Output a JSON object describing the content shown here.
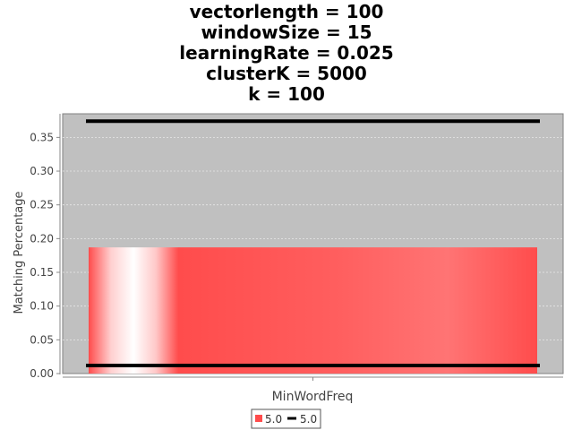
{
  "chart_data": {
    "type": "bar",
    "title_lines": [
      "vectorlength = 100",
      "windowSize = 15",
      "learningRate = 0.025",
      "clusterK = 5000",
      "k = 100"
    ],
    "xlabel": "MinWordFreq",
    "ylabel": "Matching Percentage",
    "categories": [
      ""
    ],
    "ylim": [
      0,
      0.385
    ],
    "yticks": [
      "0.00",
      "0.05",
      "0.10",
      "0.15",
      "0.20",
      "0.25",
      "0.30",
      "0.35"
    ],
    "ytick_values": [
      0,
      0.05,
      0.1,
      0.15,
      0.2,
      0.25,
      0.3,
      0.35
    ],
    "grid": true,
    "legend_placement": "bottom",
    "bar_series": {
      "name": "5.0",
      "values": [
        0.187
      ],
      "color": "#ff4c4c"
    },
    "line_series": {
      "name": "5.0",
      "upper": 0.374,
      "lower": 0.012,
      "color": "#000000"
    },
    "colors": {
      "plot_background": "#c0c0c0",
      "gridline": "#e8e8e8"
    }
  }
}
